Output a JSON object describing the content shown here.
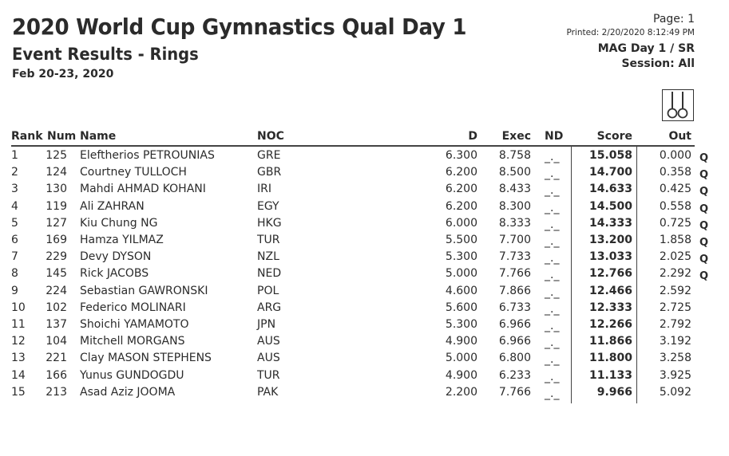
{
  "header": {
    "title": "2020 World Cup Gymnastics Qual Day 1",
    "subtitle": "Event Results - Rings",
    "dates": "Feb 20-23, 2020",
    "page": "Page: 1",
    "printed": "Printed: 2/20/2020 8:12:49 PM",
    "session_line1": "MAG Day 1 / SR",
    "session_line2": "Session: All",
    "event_icon": "rings-icon"
  },
  "table": {
    "columns": [
      "Rank",
      "Num",
      "Name",
      "NOC",
      "D",
      "Exec",
      "ND",
      "Score",
      "Out"
    ],
    "rows": [
      {
        "rank": "1",
        "num": "125",
        "name": "Eleftherios PETROUNIAS",
        "noc": "GRE",
        "d": "6.300",
        "exec": "8.758",
        "nd": "_._",
        "score": "15.058",
        "out": "0.000",
        "q": "Q"
      },
      {
        "rank": "2",
        "num": "124",
        "name": "Courtney TULLOCH",
        "noc": "GBR",
        "d": "6.200",
        "exec": "8.500",
        "nd": "_._",
        "score": "14.700",
        "out": "0.358",
        "q": "Q"
      },
      {
        "rank": "3",
        "num": "130",
        "name": "Mahdi AHMAD KOHANI",
        "noc": "IRI",
        "d": "6.200",
        "exec": "8.433",
        "nd": "_._",
        "score": "14.633",
        "out": "0.425",
        "q": "Q"
      },
      {
        "rank": "4",
        "num": "119",
        "name": "Ali ZAHRAN",
        "noc": "EGY",
        "d": "6.200",
        "exec": "8.300",
        "nd": "_._",
        "score": "14.500",
        "out": "0.558",
        "q": "Q"
      },
      {
        "rank": "5",
        "num": "127",
        "name": "Kiu Chung NG",
        "noc": "HKG",
        "d": "6.000",
        "exec": "8.333",
        "nd": "_._",
        "score": "14.333",
        "out": "0.725",
        "q": "Q"
      },
      {
        "rank": "6",
        "num": "169",
        "name": "Hamza YILMAZ",
        "noc": "TUR",
        "d": "5.500",
        "exec": "7.700",
        "nd": "_._",
        "score": "13.200",
        "out": "1.858",
        "q": "Q"
      },
      {
        "rank": "7",
        "num": "229",
        "name": "Devy DYSON",
        "noc": "NZL",
        "d": "5.300",
        "exec": "7.733",
        "nd": "_._",
        "score": "13.033",
        "out": "2.025",
        "q": "Q"
      },
      {
        "rank": "8",
        "num": "145",
        "name": "Rick JACOBS",
        "noc": "NED",
        "d": "5.000",
        "exec": "7.766",
        "nd": "_._",
        "score": "12.766",
        "out": "2.292",
        "q": "Q"
      },
      {
        "rank": "9",
        "num": "224",
        "name": "Sebastian GAWRONSKI",
        "noc": "POL",
        "d": "4.600",
        "exec": "7.866",
        "nd": "_._",
        "score": "12.466",
        "out": "2.592",
        "q": ""
      },
      {
        "rank": "10",
        "num": "102",
        "name": "Federico MOLINARI",
        "noc": "ARG",
        "d": "5.600",
        "exec": "6.733",
        "nd": "_._",
        "score": "12.333",
        "out": "2.725",
        "q": ""
      },
      {
        "rank": "11",
        "num": "137",
        "name": "Shoichi YAMAMOTO",
        "noc": "JPN",
        "d": "5.300",
        "exec": "6.966",
        "nd": "_._",
        "score": "12.266",
        "out": "2.792",
        "q": ""
      },
      {
        "rank": "12",
        "num": "104",
        "name": "Mitchell MORGANS",
        "noc": "AUS",
        "d": "4.900",
        "exec": "6.966",
        "nd": "_._",
        "score": "11.866",
        "out": "3.192",
        "q": ""
      },
      {
        "rank": "13",
        "num": "221",
        "name": "Clay MASON STEPHENS",
        "noc": "AUS",
        "d": "5.000",
        "exec": "6.800",
        "nd": "_._",
        "score": "11.800",
        "out": "3.258",
        "q": ""
      },
      {
        "rank": "14",
        "num": "166",
        "name": "Yunus GUNDOGDU",
        "noc": "TUR",
        "d": "4.900",
        "exec": "6.233",
        "nd": "_._",
        "score": "11.133",
        "out": "3.925",
        "q": ""
      },
      {
        "rank": "15",
        "num": "213",
        "name": "Asad Aziz JOOMA",
        "noc": "PAK",
        "d": "2.200",
        "exec": "7.766",
        "nd": "_._",
        "score": "9.966",
        "out": "5.092",
        "q": ""
      }
    ]
  }
}
